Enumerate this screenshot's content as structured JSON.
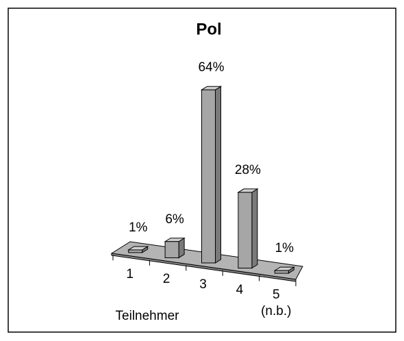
{
  "chart_data": {
    "type": "bar3d",
    "title": "Pol",
    "categories": [
      "1",
      "2",
      "3",
      "4",
      "5 (n.b.)"
    ],
    "values": [
      1,
      6,
      64,
      28,
      1
    ],
    "value_labels": [
      "1%",
      "6%",
      "64%",
      "28%",
      "1%"
    ],
    "x_label": "Teilnehmer",
    "color": "#a6a6a6"
  }
}
